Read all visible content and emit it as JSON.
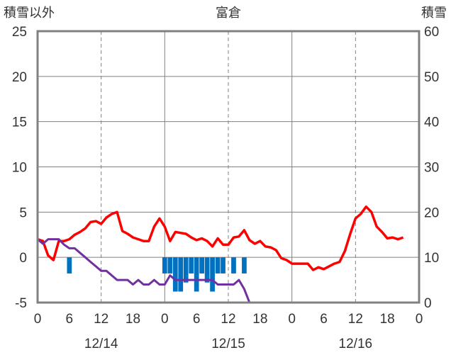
{
  "chart_data": {
    "type": "line",
    "title": "富倉",
    "y_left_label": "積雪以外",
    "y_right_label": "積雪",
    "y_left_ticks": [
      "25",
      "20",
      "15",
      "10",
      "5",
      "0",
      "-5"
    ],
    "y_right_ticks": [
      "60",
      "50",
      "40",
      "30",
      "20",
      "10",
      "0"
    ],
    "x_hour_ticks": [
      "0",
      "6",
      "12",
      "18",
      "0",
      "6",
      "12",
      "18",
      "0",
      "6",
      "12",
      "18",
      "0"
    ],
    "date_labels": [
      "12/14",
      "12/15",
      "12/16"
    ],
    "y_left_range": [
      -5,
      25
    ],
    "y_right_range": [
      0,
      60
    ],
    "x_range_hours": [
      0,
      72
    ],
    "colors": {
      "temperature": "#ff0000",
      "dew_point": "#7030a0",
      "snow_bar": "#0070c0",
      "frame": "#808080",
      "grid": "#808080"
    },
    "series": [
      {
        "key": "temperature",
        "points": [
          [
            0,
            2
          ],
          [
            1,
            1.8
          ],
          [
            2,
            0.2
          ],
          [
            3,
            -0.3
          ],
          [
            4,
            1.8
          ],
          [
            5,
            1.8
          ],
          [
            6,
            2
          ],
          [
            7,
            2.5
          ],
          [
            8,
            2.8
          ],
          [
            9,
            3.2
          ],
          [
            10,
            3.9
          ],
          [
            11,
            4
          ],
          [
            12,
            3.7
          ],
          [
            13,
            4.4
          ],
          [
            14,
            4.8
          ],
          [
            15,
            5
          ],
          [
            16,
            2.9
          ],
          [
            17,
            2.6
          ],
          [
            18,
            2.2
          ],
          [
            19,
            2
          ],
          [
            20,
            1.8
          ],
          [
            21,
            1.8
          ],
          [
            22,
            3.4
          ],
          [
            23,
            4.3
          ],
          [
            24,
            3.4
          ],
          [
            25,
            1.8
          ],
          [
            26,
            2.8
          ],
          [
            27,
            2.7
          ],
          [
            28,
            2.6
          ],
          [
            29,
            2.2
          ],
          [
            30,
            1.9
          ],
          [
            31,
            2.1
          ],
          [
            32,
            1.8
          ],
          [
            33,
            1.2
          ],
          [
            34,
            2.1
          ],
          [
            35,
            1.4
          ],
          [
            36,
            1.4
          ],
          [
            37,
            2.2
          ],
          [
            38,
            2.3
          ],
          [
            39,
            3
          ],
          [
            40,
            1.9
          ],
          [
            41,
            1.5
          ],
          [
            42,
            1.8
          ],
          [
            43,
            1.2
          ],
          [
            44,
            1.1
          ],
          [
            45,
            0.8
          ],
          [
            46,
            -0.1
          ],
          [
            47,
            -0.3
          ],
          [
            48,
            -0.7
          ],
          [
            49,
            -0.7
          ],
          [
            50,
            -0.7
          ],
          [
            51,
            -0.7
          ],
          [
            52,
            -1.4
          ],
          [
            53,
            -1.1
          ],
          [
            54,
            -1.3
          ],
          [
            55,
            -1
          ],
          [
            56,
            -0.7
          ],
          [
            57,
            -0.5
          ],
          [
            58,
            0.7
          ],
          [
            59,
            2.6
          ],
          [
            60,
            4.3
          ],
          [
            61,
            4.8
          ],
          [
            62,
            5.6
          ],
          [
            63,
            5
          ],
          [
            64,
            3.4
          ],
          [
            65,
            2.8
          ],
          [
            66,
            2.1
          ],
          [
            67,
            2.2
          ],
          [
            68,
            2
          ],
          [
            69,
            2.2
          ]
        ]
      },
      {
        "key": "dew_point",
        "points": [
          [
            0,
            2
          ],
          [
            1,
            1.5
          ],
          [
            2,
            2
          ],
          [
            3,
            2
          ],
          [
            4,
            2
          ],
          [
            5,
            1.4
          ],
          [
            6,
            1
          ],
          [
            7,
            1
          ],
          [
            8,
            0.5
          ],
          [
            9,
            0
          ],
          [
            10,
            -0.5
          ],
          [
            11,
            -1
          ],
          [
            12,
            -1.5
          ],
          [
            13,
            -1.5
          ],
          [
            14,
            -2
          ],
          [
            15,
            -2.5
          ],
          [
            16,
            -2.5
          ],
          [
            17,
            -2.5
          ],
          [
            18,
            -3
          ],
          [
            19,
            -2.5
          ],
          [
            20,
            -3
          ],
          [
            21,
            -3
          ],
          [
            22,
            -2.5
          ],
          [
            23,
            -3
          ],
          [
            24,
            -3
          ],
          [
            25,
            -2
          ],
          [
            26,
            -2.5
          ],
          [
            27,
            -2.5
          ],
          [
            28,
            -2.5
          ],
          [
            29,
            -2.5
          ],
          [
            30,
            -2.5
          ],
          [
            31,
            -2.5
          ],
          [
            32,
            -2.5
          ],
          [
            33,
            -2.5
          ],
          [
            34,
            -3
          ],
          [
            35,
            -3
          ],
          [
            36,
            -3
          ],
          [
            37,
            -3
          ],
          [
            38,
            -2.5
          ],
          [
            39,
            -3.5
          ],
          [
            40,
            -5
          ],
          [
            69,
            -5
          ]
        ]
      }
    ],
    "snow_bars": {
      "unit": "cm",
      "bars": [
        [
          6,
          8
        ],
        [
          24,
          8
        ],
        [
          25,
          8
        ],
        [
          26,
          4
        ],
        [
          27,
          4
        ],
        [
          28,
          6
        ],
        [
          29,
          8
        ],
        [
          30,
          4
        ],
        [
          31,
          8
        ],
        [
          32,
          6
        ],
        [
          33,
          4
        ],
        [
          34,
          8
        ],
        [
          35,
          8
        ],
        [
          37,
          8
        ],
        [
          39,
          8
        ]
      ]
    }
  }
}
